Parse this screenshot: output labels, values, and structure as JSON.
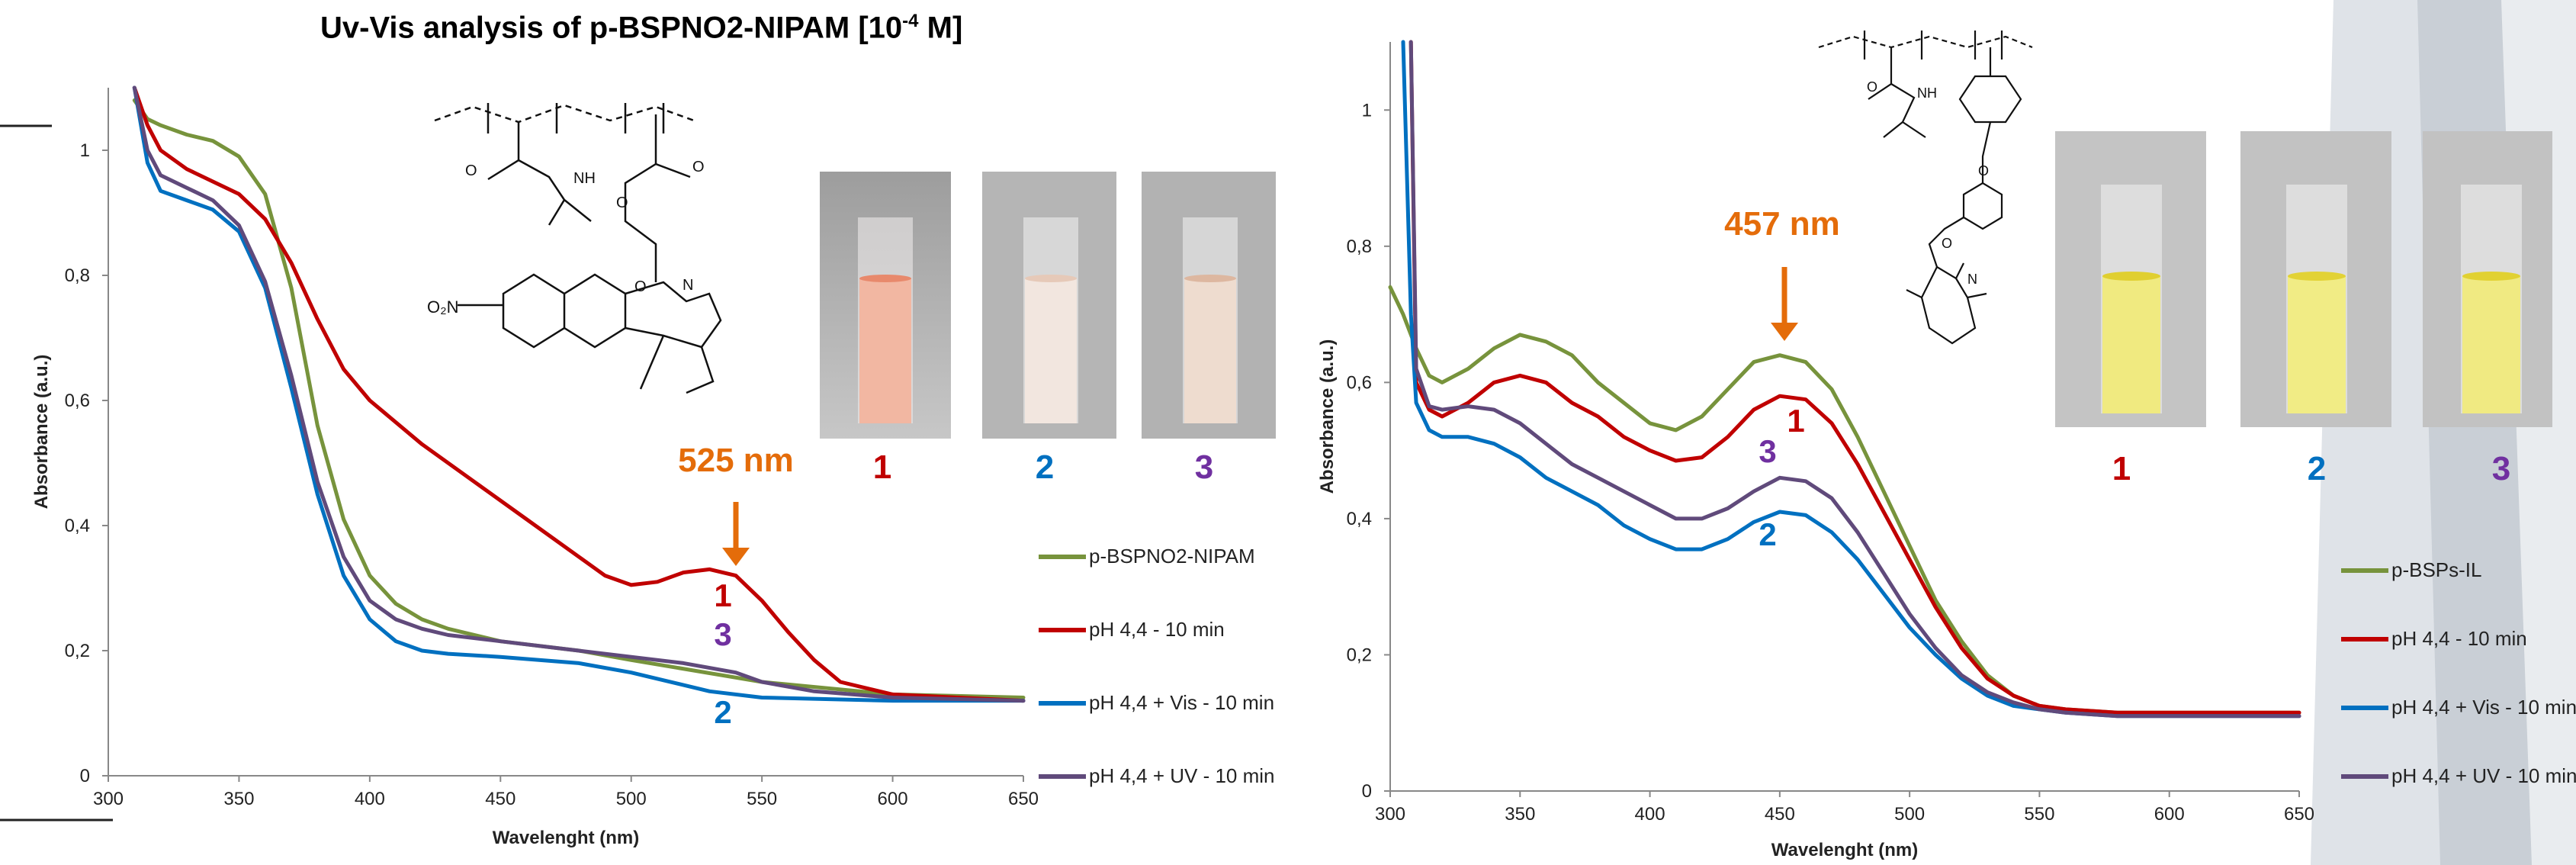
{
  "title_main": "Uv-Vis analysis of p-BSPNO2-NIPAM [10",
  "title_sup": "-4",
  "title_end": " M]",
  "colors": {
    "green": "#77933c",
    "red": "#c00000",
    "blue": "#0070c0",
    "purple": "#604a7b",
    "orange": "#e46c0a"
  },
  "left_vials": [
    "1",
    "2",
    "3"
  ],
  "right_vials": [
    "1",
    "2",
    "3"
  ],
  "chart_data": [
    {
      "type": "line",
      "xlabel": "Wavelenght (nm)",
      "ylabel": "Absorbance (a.u.)",
      "xlim": [
        300,
        650
      ],
      "ylim": [
        0,
        1.1
      ],
      "xticks": [
        "300",
        "350",
        "400",
        "450",
        "500",
        "550",
        "600",
        "650"
      ],
      "yticks": [
        "0",
        "0,2",
        "0,4",
        "0,6",
        "0,8",
        "1"
      ],
      "annotations": {
        "peak": "525 nm",
        "label_1": "1",
        "label_2": "2",
        "label_3": "3"
      },
      "series": [
        {
          "name": "p-BSPNO2-NIPAM",
          "color": "green",
          "x": [
            310,
            315,
            320,
            330,
            340,
            350,
            360,
            370,
            380,
            390,
            400,
            410,
            420,
            430,
            450,
            480,
            500,
            550,
            600,
            650
          ],
          "y": [
            1.08,
            1.05,
            1.04,
            1.025,
            1.015,
            0.99,
            0.93,
            0.78,
            0.56,
            0.41,
            0.32,
            0.275,
            0.25,
            0.235,
            0.215,
            0.2,
            0.185,
            0.15,
            0.13,
            0.125
          ]
        },
        {
          "name": "pH 4,4 - 10 min",
          "color": "red",
          "x": [
            310,
            315,
            320,
            330,
            340,
            350,
            360,
            370,
            380,
            390,
            400,
            420,
            440,
            460,
            480,
            490,
            500,
            510,
            520,
            530,
            540,
            550,
            560,
            570,
            580,
            600,
            650
          ],
          "y": [
            1.1,
            1.04,
            1.0,
            0.97,
            0.95,
            0.93,
            0.89,
            0.82,
            0.73,
            0.65,
            0.6,
            0.53,
            0.47,
            0.41,
            0.35,
            0.32,
            0.305,
            0.31,
            0.325,
            0.33,
            0.32,
            0.28,
            0.23,
            0.185,
            0.15,
            0.13,
            0.12
          ]
        },
        {
          "name": "pH 4,4 + Vis - 10 min",
          "color": "blue",
          "x": [
            310,
            315,
            320,
            330,
            340,
            350,
            360,
            370,
            380,
            390,
            400,
            410,
            420,
            430,
            450,
            480,
            500,
            530,
            550,
            600,
            650
          ],
          "y": [
            1.1,
            0.98,
            0.935,
            0.92,
            0.905,
            0.87,
            0.78,
            0.62,
            0.45,
            0.32,
            0.25,
            0.215,
            0.2,
            0.195,
            0.19,
            0.18,
            0.165,
            0.135,
            0.125,
            0.12,
            0.12
          ]
        },
        {
          "name": "pH 4,4 + UV - 10 min",
          "color": "purple",
          "x": [
            310,
            315,
            320,
            330,
            340,
            350,
            360,
            370,
            380,
            390,
            400,
            410,
            420,
            430,
            450,
            480,
            500,
            520,
            540,
            550,
            570,
            600,
            650
          ],
          "y": [
            1.1,
            1.0,
            0.96,
            0.94,
            0.92,
            0.88,
            0.79,
            0.64,
            0.47,
            0.35,
            0.28,
            0.25,
            0.235,
            0.225,
            0.215,
            0.2,
            0.19,
            0.18,
            0.165,
            0.15,
            0.135,
            0.125,
            0.12
          ]
        }
      ]
    },
    {
      "type": "line",
      "xlabel": "Wavelenght (nm)",
      "ylabel": "Absorbance (a.u.)",
      "xlim": [
        300,
        650
      ],
      "ylim": [
        0,
        1.1
      ],
      "xticks": [
        "300",
        "350",
        "400",
        "450",
        "500",
        "550",
        "600",
        "650"
      ],
      "yticks": [
        "0",
        "0,2",
        "0,4",
        "0,6",
        "0,8",
        "1"
      ],
      "annotations": {
        "peak": "457 nm",
        "label_1": "1",
        "label_2": "2",
        "label_3": "3"
      },
      "series": [
        {
          "name": "p-BSPs-IL",
          "color": "green",
          "x": [
            300,
            305,
            310,
            315,
            320,
            330,
            340,
            350,
            360,
            370,
            380,
            390,
            400,
            410,
            420,
            430,
            440,
            450,
            460,
            470,
            480,
            490,
            500,
            510,
            520,
            530,
            540,
            550,
            560,
            580,
            600,
            620,
            650
          ],
          "y": [
            0.74,
            0.7,
            0.65,
            0.61,
            0.6,
            0.62,
            0.65,
            0.67,
            0.66,
            0.64,
            0.6,
            0.57,
            0.54,
            0.53,
            0.55,
            0.59,
            0.63,
            0.64,
            0.63,
            0.59,
            0.52,
            0.44,
            0.36,
            0.28,
            0.22,
            0.17,
            0.14,
            0.125,
            0.12,
            0.115,
            0.115,
            0.115,
            0.115
          ]
        },
        {
          "name": "pH 4,4 - 10 min",
          "color": "red",
          "x": [
            308,
            310,
            315,
            320,
            330,
            340,
            350,
            360,
            370,
            380,
            390,
            400,
            410,
            420,
            430,
            440,
            450,
            460,
            470,
            480,
            490,
            500,
            510,
            520,
            530,
            540,
            550,
            560,
            580,
            600,
            620,
            650
          ],
          "y": [
            1.1,
            0.6,
            0.56,
            0.55,
            0.57,
            0.6,
            0.61,
            0.6,
            0.57,
            0.55,
            0.52,
            0.5,
            0.485,
            0.49,
            0.52,
            0.56,
            0.58,
            0.575,
            0.54,
            0.48,
            0.41,
            0.34,
            0.27,
            0.21,
            0.165,
            0.14,
            0.125,
            0.12,
            0.115,
            0.115,
            0.115,
            0.115
          ]
        },
        {
          "name": "pH 4,4 + Vis - 10 min",
          "color": "blue",
          "x": [
            305,
            308,
            310,
            315,
            320,
            330,
            340,
            350,
            360,
            370,
            380,
            390,
            400,
            410,
            420,
            430,
            440,
            450,
            460,
            470,
            480,
            490,
            500,
            510,
            520,
            530,
            540,
            550,
            560,
            580,
            600,
            620,
            650
          ],
          "y": [
            1.1,
            0.7,
            0.57,
            0.53,
            0.52,
            0.52,
            0.51,
            0.49,
            0.46,
            0.44,
            0.42,
            0.39,
            0.37,
            0.355,
            0.355,
            0.37,
            0.395,
            0.41,
            0.405,
            0.38,
            0.34,
            0.29,
            0.24,
            0.2,
            0.165,
            0.14,
            0.125,
            0.12,
            0.115,
            0.11,
            0.11,
            0.11,
            0.11
          ]
        },
        {
          "name": "pH 4,4 + UV - 10 min",
          "color": "purple",
          "x": [
            308,
            310,
            315,
            320,
            330,
            340,
            350,
            360,
            370,
            380,
            390,
            400,
            410,
            420,
            430,
            440,
            450,
            460,
            470,
            480,
            490,
            500,
            510,
            520,
            530,
            540,
            550,
            560,
            580,
            600,
            620,
            650
          ],
          "y": [
            1.1,
            0.62,
            0.565,
            0.56,
            0.565,
            0.56,
            0.54,
            0.51,
            0.48,
            0.46,
            0.44,
            0.42,
            0.4,
            0.4,
            0.415,
            0.44,
            0.46,
            0.455,
            0.43,
            0.38,
            0.32,
            0.26,
            0.21,
            0.17,
            0.145,
            0.13,
            0.12,
            0.115,
            0.11,
            0.11,
            0.11,
            0.11
          ]
        }
      ]
    }
  ]
}
